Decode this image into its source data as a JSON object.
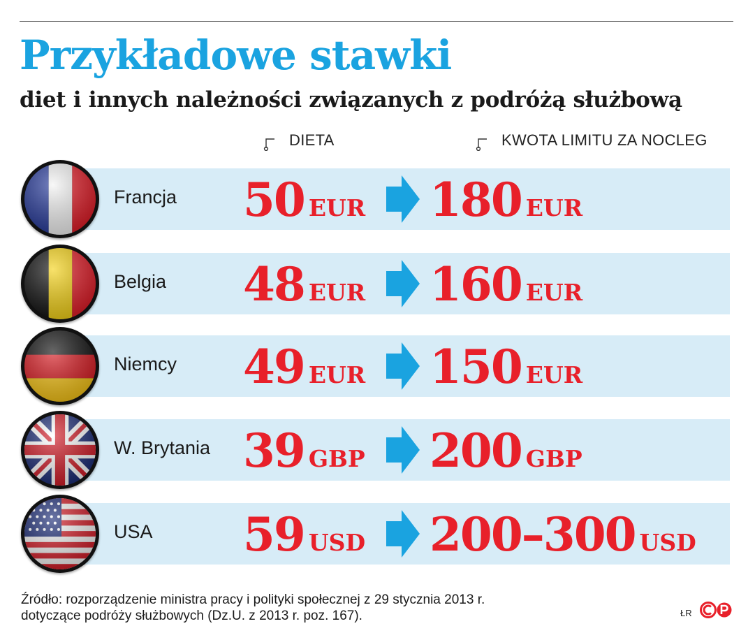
{
  "title": "Przykładowe stawki",
  "subtitle": "diet i innych należności związanych z podróżą służbową",
  "columns": {
    "dieta": "DIETA",
    "limit": "KWOTA LIMITU ZA NOCLEG"
  },
  "rows": [
    {
      "country": "Francja",
      "flag_icon": "france-flag-icon",
      "dieta_value": "50",
      "dieta_currency": "EUR",
      "limit_value": "180",
      "limit_currency": "EUR"
    },
    {
      "country": "Belgia",
      "flag_icon": "belgium-flag-icon",
      "dieta_value": "48",
      "dieta_currency": "EUR",
      "limit_value": "160",
      "limit_currency": "EUR"
    },
    {
      "country": "Niemcy",
      "flag_icon": "germany-flag-icon",
      "dieta_value": "49",
      "dieta_currency": "EUR",
      "limit_value": "150",
      "limit_currency": "EUR"
    },
    {
      "country": "W. Brytania",
      "flag_icon": "uk-flag-icon",
      "dieta_value": "39",
      "dieta_currency": "GBP",
      "limit_value": "200",
      "limit_currency": "GBP"
    },
    {
      "country": "USA",
      "flag_icon": "usa-flag-icon",
      "dieta_value": "59",
      "dieta_currency": "USD",
      "limit_value": "200–300",
      "limit_currency": "USD"
    }
  ],
  "footer": {
    "line1": "Źródło: rozporządzenie ministra pracy i polityki społecznej z 29 stycznia 2013 r.",
    "line2": "dotyczące podróży służbowych (Dz.U. z 2013 r. poz. 167).",
    "initials": "ŁR"
  },
  "colors": {
    "title": "#1aa3e0",
    "amount": "#e8202a",
    "band": "#d7ecf7",
    "arrow": "#1aa3e0"
  }
}
